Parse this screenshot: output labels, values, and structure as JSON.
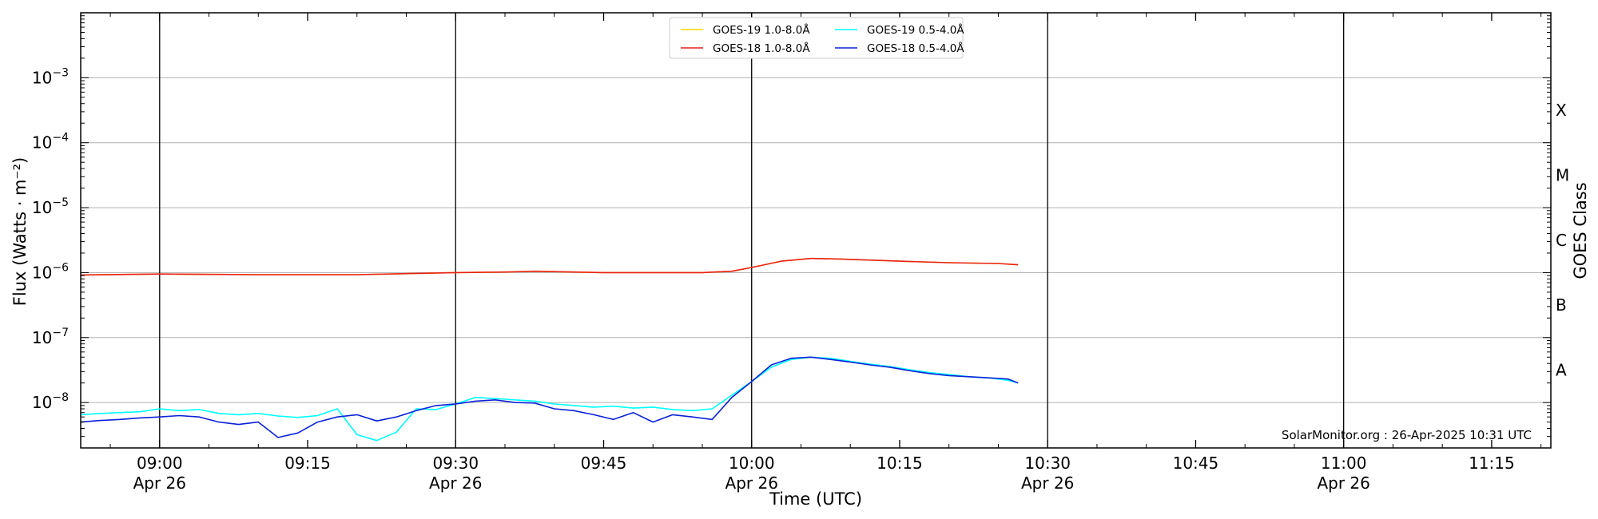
{
  "chart_data": {
    "type": "line",
    "xlabel": "Time (UTC)",
    "ylabel": "Flux (Watts · m⁻²)",
    "y2label": "GOES Class",
    "yscale": "log",
    "ylim": [
      2e-09,
      0.01
    ],
    "xlim": [
      "2025-04-26 08:52",
      "2025-04-26 11:21"
    ],
    "x_ticks": [
      {
        "time": "09:00",
        "date": "Apr 26"
      },
      {
        "time": "09:15",
        "date": ""
      },
      {
        "time": "09:30",
        "date": "Apr 26"
      },
      {
        "time": "09:45",
        "date": ""
      },
      {
        "time": "10:00",
        "date": "Apr 26"
      },
      {
        "time": "10:15",
        "date": ""
      },
      {
        "time": "10:30",
        "date": "Apr 26"
      },
      {
        "time": "10:45",
        "date": ""
      },
      {
        "time": "11:00",
        "date": "Apr 26"
      },
      {
        "time": "11:15",
        "date": ""
      }
    ],
    "vlines": [
      "09:00",
      "09:30",
      "10:00",
      "10:30",
      "11:00"
    ],
    "y_ticks": [
      {
        "base": "10",
        "exp": "−8",
        "value": 1e-08
      },
      {
        "base": "10",
        "exp": "−7",
        "value": 1e-07
      },
      {
        "base": "10",
        "exp": "−6",
        "value": 1e-06
      },
      {
        "base": "10",
        "exp": "−5",
        "value": 1e-05
      },
      {
        "base": "10",
        "exp": "−4",
        "value": 0.0001
      },
      {
        "base": "10",
        "exp": "−3",
        "value": 0.001
      }
    ],
    "goes_classes": [
      {
        "label": "A",
        "value": 3.16e-08
      },
      {
        "label": "B",
        "value": 3.16e-07
      },
      {
        "label": "C",
        "value": 3.16e-06
      },
      {
        "label": "M",
        "value": 3.16e-05
      },
      {
        "label": "X",
        "value": 0.000316
      }
    ],
    "grid": true,
    "legend": "top-center",
    "series": [
      {
        "name": "GOES-19 1.0-8.0Å",
        "color": "#ffd700",
        "time": [
          "08:52",
          "09:00",
          "09:10",
          "09:20",
          "09:30",
          "09:35",
          "09:38",
          "09:45",
          "09:55",
          "09:58",
          "10:00",
          "10:03",
          "10:06",
          "10:09",
          "10:15",
          "10:20",
          "10:25",
          "10:27"
        ],
        "values": [
          9.2e-07,
          9.5e-07,
          9.3e-07,
          9.3e-07,
          1e-06,
          1.02e-06,
          1.05e-06,
          1e-06,
          1e-06,
          1.05e-06,
          1.2e-06,
          1.5e-06,
          1.65e-06,
          1.62e-06,
          1.5e-06,
          1.42e-06,
          1.38e-06,
          1.32e-06
        ]
      },
      {
        "name": "GOES-18 1.0-8.0Å",
        "color": "#e8201a",
        "time": [
          "08:52",
          "09:00",
          "09:10",
          "09:20",
          "09:30",
          "09:35",
          "09:38",
          "09:45",
          "09:55",
          "09:58",
          "10:00",
          "10:03",
          "10:06",
          "10:09",
          "10:15",
          "10:20",
          "10:25",
          "10:27"
        ],
        "values": [
          9.2e-07,
          9.5e-07,
          9.3e-07,
          9.3e-07,
          1e-06,
          1.02e-06,
          1.05e-06,
          1e-06,
          1e-06,
          1.05e-06,
          1.2e-06,
          1.5e-06,
          1.65e-06,
          1.62e-06,
          1.5e-06,
          1.42e-06,
          1.38e-06,
          1.32e-06
        ]
      },
      {
        "name": "GOES-19 0.5-4.0Å",
        "color": "#00ffff",
        "time": [
          "08:52",
          "08:54",
          "08:56",
          "08:58",
          "09:00",
          "09:02",
          "09:04",
          "09:06",
          "09:08",
          "09:10",
          "09:12",
          "09:14",
          "09:16",
          "09:18",
          "09:20",
          "09:22",
          "09:24",
          "09:26",
          "09:28",
          "09:30",
          "09:32",
          "09:34",
          "09:36",
          "09:38",
          "09:40",
          "09:42",
          "09:44",
          "09:46",
          "09:48",
          "09:50",
          "09:52",
          "09:54",
          "09:56",
          "09:58",
          "10:00",
          "10:02",
          "10:04",
          "10:06",
          "10:08",
          "10:10",
          "10:12",
          "10:14",
          "10:16",
          "10:18",
          "10:20",
          "10:22",
          "10:24",
          "10:26",
          "10:27"
        ],
        "values": [
          6.5e-09,
          6.8e-09,
          7e-09,
          7.2e-09,
          8e-09,
          7.5e-09,
          7.8e-09,
          6.8e-09,
          6.5e-09,
          6.8e-09,
          6.2e-09,
          5.9e-09,
          6.3e-09,
          8e-09,
          3.2e-09,
          2.6e-09,
          3.5e-09,
          8e-09,
          7.8e-09,
          9.5e-09,
          1.2e-08,
          1.15e-08,
          1.1e-08,
          1.05e-08,
          9.5e-09,
          9e-09,
          8.5e-09,
          8.8e-09,
          8.2e-09,
          8.5e-09,
          7.8e-09,
          7.5e-09,
          8e-09,
          1.3e-08,
          2.1e-08,
          3.5e-08,
          4.6e-08,
          5e-08,
          4.8e-08,
          4.3e-08,
          3.9e-08,
          3.6e-08,
          3.2e-08,
          2.9e-08,
          2.7e-08,
          2.5e-08,
          2.4e-08,
          2.2e-08,
          2e-08
        ]
      },
      {
        "name": "GOES-18 0.5-4.0Å",
        "color": "#0a22d6",
        "time": [
          "08:52",
          "08:54",
          "08:56",
          "08:58",
          "09:00",
          "09:02",
          "09:04",
          "09:06",
          "09:08",
          "09:10",
          "09:12",
          "09:14",
          "09:16",
          "09:18",
          "09:20",
          "09:22",
          "09:24",
          "09:26",
          "09:28",
          "09:30",
          "09:32",
          "09:34",
          "09:36",
          "09:38",
          "09:40",
          "09:42",
          "09:44",
          "09:46",
          "09:48",
          "09:50",
          "09:52",
          "09:54",
          "09:56",
          "09:58",
          "10:00",
          "10:02",
          "10:04",
          "10:06",
          "10:08",
          "10:10",
          "10:12",
          "10:14",
          "10:16",
          "10:18",
          "10:20",
          "10:22",
          "10:24",
          "10:26",
          "10:27"
        ],
        "values": [
          5e-09,
          5.3e-09,
          5.5e-09,
          5.8e-09,
          6e-09,
          6.3e-09,
          6e-09,
          5e-09,
          4.6e-09,
          5e-09,
          2.9e-09,
          3.4e-09,
          5e-09,
          6e-09,
          6.5e-09,
          5.2e-09,
          6e-09,
          7.5e-09,
          9e-09,
          9.5e-09,
          1.05e-08,
          1.1e-08,
          1e-08,
          9.8e-09,
          8e-09,
          7.5e-09,
          6.5e-09,
          5.5e-09,
          7e-09,
          5e-09,
          6.5e-09,
          6e-09,
          5.5e-09,
          1.2e-08,
          2.1e-08,
          3.8e-08,
          4.8e-08,
          5e-08,
          4.6e-08,
          4.2e-08,
          3.8e-08,
          3.5e-08,
          3.1e-08,
          2.8e-08,
          2.6e-08,
          2.5e-08,
          2.4e-08,
          2.3e-08,
          2e-08
        ]
      }
    ],
    "credit": "SolarMonitor.org : 26-Apr-2025 10:31 UTC"
  }
}
